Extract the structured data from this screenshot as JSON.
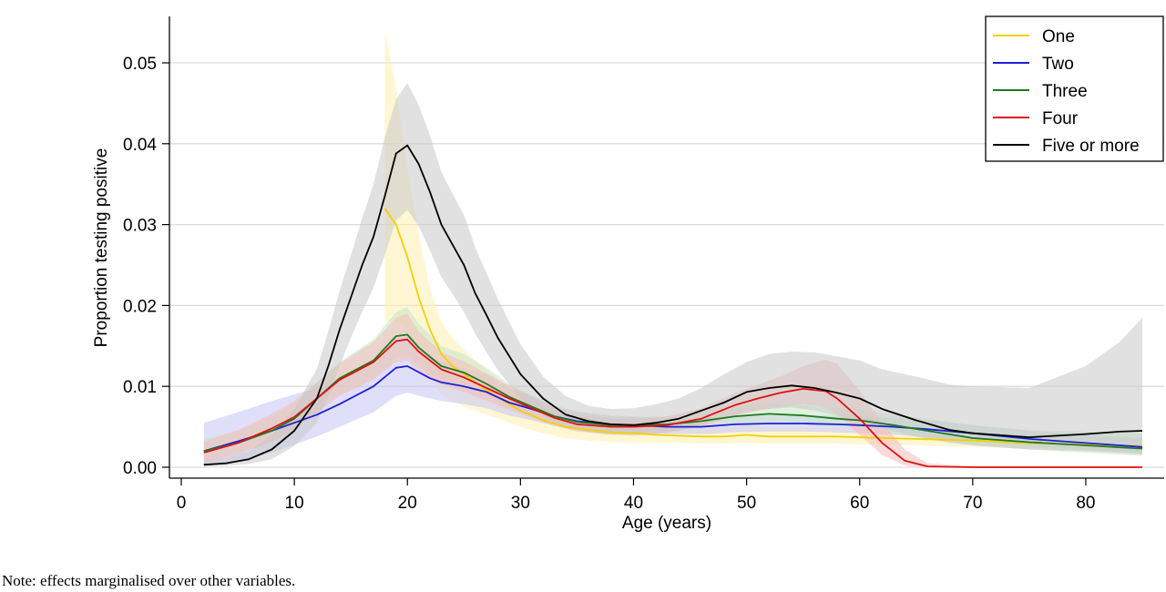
{
  "chart_data": {
    "type": "line",
    "xlabel": "Age (years)",
    "ylabel": "Proportion testing positive",
    "xlim": [
      0,
      87
    ],
    "ylim": [
      0,
      0.056
    ],
    "xticks": [
      0,
      10,
      20,
      30,
      40,
      50,
      60,
      70,
      80
    ],
    "yticks": [
      0.0,
      0.01,
      0.02,
      0.03,
      0.04,
      0.05
    ],
    "ytick_labels": [
      "0.00",
      "0.01",
      "0.02",
      "0.03",
      "0.04",
      "0.05"
    ],
    "grid": "horizontal",
    "legend_position": "top-right",
    "series": [
      {
        "name": "One",
        "color": "#f5d000",
        "band_color": "#fff0b0",
        "x": [
          18,
          19,
          20,
          21,
          22,
          23,
          24,
          25,
          27,
          29,
          30,
          32,
          34,
          36,
          38,
          40,
          42,
          44,
          46,
          48,
          50,
          52,
          55,
          58,
          60,
          62,
          65,
          70,
          75,
          80,
          85
        ],
        "y": [
          0.032,
          0.03,
          0.026,
          0.021,
          0.017,
          0.014,
          0.0125,
          0.0115,
          0.0095,
          0.0078,
          0.007,
          0.0058,
          0.005,
          0.0046,
          0.0043,
          0.0042,
          0.004,
          0.0039,
          0.0038,
          0.0038,
          0.004,
          0.0038,
          0.0038,
          0.0038,
          0.0037,
          0.0036,
          0.0035,
          0.0033,
          0.003,
          0.0028,
          0.0026
        ],
        "lower": [
          0.018,
          0.018,
          0.017,
          0.014,
          0.011,
          0.009,
          0.0082,
          0.0075,
          0.0065,
          0.0055,
          0.005,
          0.0042,
          0.0036,
          0.0033,
          0.0031,
          0.003,
          0.003,
          0.003,
          0.0029,
          0.0029,
          0.003,
          0.0029,
          0.0029,
          0.0029,
          0.0028,
          0.0028,
          0.0027,
          0.0025,
          0.0023,
          0.0021,
          0.0018
        ],
        "upper": [
          0.054,
          0.047,
          0.037,
          0.029,
          0.022,
          0.018,
          0.016,
          0.0145,
          0.012,
          0.0098,
          0.0088,
          0.0073,
          0.0063,
          0.0058,
          0.0055,
          0.0054,
          0.0051,
          0.005,
          0.0049,
          0.0048,
          0.0052,
          0.0049,
          0.0049,
          0.0049,
          0.0047,
          0.0046,
          0.0045,
          0.0043,
          0.004,
          0.0037,
          0.0036
        ]
      },
      {
        "name": "Two",
        "color": "#1f1fd6",
        "band_color": "#c4c4f5",
        "x": [
          2,
          5,
          8,
          10,
          12,
          14,
          17,
          19,
          20,
          22,
          23,
          25,
          27,
          29,
          31,
          33,
          35,
          38,
          40,
          43,
          46,
          49,
          52,
          55,
          58,
          60,
          63,
          66,
          70,
          75,
          80,
          85
        ],
        "y": [
          0.002,
          0.0032,
          0.0045,
          0.0055,
          0.0065,
          0.0078,
          0.01,
          0.0123,
          0.0125,
          0.011,
          0.0105,
          0.01,
          0.0093,
          0.008,
          0.0072,
          0.0063,
          0.0057,
          0.0053,
          0.0052,
          0.005,
          0.005,
          0.0053,
          0.0054,
          0.0054,
          0.0053,
          0.0052,
          0.005,
          0.0047,
          0.0042,
          0.0035,
          0.003,
          0.0025
        ],
        "lower": [
          0.0002,
          0.0008,
          0.0018,
          0.0028,
          0.0038,
          0.005,
          0.0068,
          0.0088,
          0.0092,
          0.0085,
          0.0082,
          0.0078,
          0.0073,
          0.0064,
          0.0058,
          0.0051,
          0.0046,
          0.0043,
          0.0042,
          0.0041,
          0.0041,
          0.0043,
          0.0044,
          0.0044,
          0.0043,
          0.0042,
          0.004,
          0.0037,
          0.0033,
          0.0027,
          0.0022,
          0.0016
        ],
        "upper": [
          0.0055,
          0.0068,
          0.0082,
          0.009,
          0.0098,
          0.0108,
          0.013,
          0.016,
          0.0162,
          0.0138,
          0.013,
          0.0122,
          0.0114,
          0.0098,
          0.0088,
          0.0076,
          0.0069,
          0.0064,
          0.0063,
          0.006,
          0.006,
          0.0064,
          0.0065,
          0.0065,
          0.0064,
          0.0063,
          0.0061,
          0.0058,
          0.0052,
          0.0045,
          0.004,
          0.0036
        ]
      },
      {
        "name": "Three",
        "color": "#1e7a1e",
        "band_color": "#c6e5c6",
        "x": [
          2,
          5,
          8,
          10,
          12,
          14,
          17,
          19,
          20,
          21,
          23,
          25,
          27,
          29,
          31,
          33,
          35,
          38,
          40,
          43,
          46,
          49,
          52,
          55,
          58,
          60,
          63,
          66,
          70,
          75,
          80,
          85
        ],
        "y": [
          0.002,
          0.003,
          0.0045,
          0.006,
          0.0085,
          0.011,
          0.0132,
          0.0162,
          0.0164,
          0.0148,
          0.0125,
          0.0117,
          0.0103,
          0.0087,
          0.0075,
          0.0063,
          0.0056,
          0.0052,
          0.0052,
          0.0053,
          0.0057,
          0.0063,
          0.0066,
          0.0064,
          0.006,
          0.0058,
          0.0052,
          0.0045,
          0.0036,
          0.0031,
          0.0027,
          0.0023
        ],
        "lower": [
          0.0008,
          0.0017,
          0.003,
          0.0045,
          0.0068,
          0.009,
          0.011,
          0.0135,
          0.0138,
          0.0125,
          0.0106,
          0.0099,
          0.0087,
          0.0073,
          0.0063,
          0.0053,
          0.0047,
          0.0044,
          0.0044,
          0.0045,
          0.0048,
          0.0053,
          0.0055,
          0.0053,
          0.0049,
          0.0047,
          0.0042,
          0.0035,
          0.0027,
          0.0022,
          0.0018,
          0.0014
        ],
        "upper": [
          0.0035,
          0.0045,
          0.0062,
          0.008,
          0.0105,
          0.013,
          0.0158,
          0.0192,
          0.0198,
          0.0178,
          0.015,
          0.014,
          0.0123,
          0.0103,
          0.0089,
          0.0075,
          0.0067,
          0.0062,
          0.0062,
          0.0063,
          0.0068,
          0.0075,
          0.0079,
          0.0077,
          0.0073,
          0.0071,
          0.0066,
          0.006,
          0.0052,
          0.0046,
          0.0044,
          0.0042
        ]
      },
      {
        "name": "Four",
        "color": "#e01010",
        "band_color": "#f4bcbc",
        "x": [
          2,
          5,
          8,
          10,
          12,
          14,
          17,
          19,
          20,
          21,
          23,
          25,
          27,
          29,
          31,
          33,
          35,
          38,
          40,
          43,
          46,
          49,
          51,
          53,
          55,
          57,
          58,
          60,
          62,
          64,
          66,
          70,
          75,
          80,
          85
        ],
        "y": [
          0.0018,
          0.003,
          0.0048,
          0.0062,
          0.0085,
          0.0108,
          0.013,
          0.0156,
          0.0158,
          0.0143,
          0.0121,
          0.0111,
          0.0098,
          0.0085,
          0.0073,
          0.0061,
          0.0053,
          0.005,
          0.005,
          0.0052,
          0.006,
          0.0077,
          0.0085,
          0.0092,
          0.0097,
          0.0094,
          0.0085,
          0.006,
          0.003,
          0.0008,
          0.0001,
          0.0,
          0.0,
          0.0,
          0.0
        ],
        "lower": [
          0.0006,
          0.0016,
          0.0032,
          0.0046,
          0.0068,
          0.0088,
          0.0108,
          0.013,
          0.0132,
          0.012,
          0.0102,
          0.0093,
          0.0082,
          0.0071,
          0.0061,
          0.0051,
          0.0044,
          0.0041,
          0.0041,
          0.0043,
          0.005,
          0.0064,
          0.007,
          0.0075,
          0.0078,
          0.0074,
          0.0065,
          0.004,
          0.0015,
          0.0002,
          0.0,
          0.0,
          0.0,
          0.0,
          0.0
        ],
        "upper": [
          0.0032,
          0.0046,
          0.0066,
          0.0082,
          0.0105,
          0.0128,
          0.0155,
          0.0185,
          0.019,
          0.0168,
          0.0142,
          0.0131,
          0.0116,
          0.0101,
          0.0087,
          0.0073,
          0.0064,
          0.006,
          0.006,
          0.0063,
          0.0073,
          0.0092,
          0.0102,
          0.0112,
          0.0125,
          0.0133,
          0.0128,
          0.0095,
          0.0055,
          0.0022,
          0.0005,
          0.0001,
          0.0,
          0.0,
          0.0
        ]
      },
      {
        "name": "Five or more",
        "color": "#000000",
        "band_color": "#c8c8c8",
        "x": [
          2,
          4,
          6,
          8,
          10,
          12,
          13,
          14,
          15,
          16,
          17,
          18,
          19,
          20,
          21,
          22,
          23,
          24,
          25,
          26,
          27,
          28,
          30,
          32,
          34,
          36,
          38,
          40,
          42,
          44,
          46,
          48,
          50,
          52,
          54,
          56,
          58,
          60,
          62,
          65,
          68,
          70,
          75,
          80,
          83,
          85
        ],
        "y": [
          0.0003,
          0.0005,
          0.001,
          0.0022,
          0.0045,
          0.0085,
          0.0125,
          0.017,
          0.021,
          0.025,
          0.0285,
          0.0335,
          0.0388,
          0.0398,
          0.0375,
          0.034,
          0.03,
          0.0275,
          0.025,
          0.0215,
          0.0188,
          0.016,
          0.0115,
          0.0085,
          0.0065,
          0.0057,
          0.0053,
          0.0052,
          0.0055,
          0.006,
          0.007,
          0.008,
          0.0093,
          0.0098,
          0.0101,
          0.0098,
          0.0092,
          0.0085,
          0.0072,
          0.0058,
          0.0046,
          0.0042,
          0.0037,
          0.0041,
          0.0044,
          0.0045
        ],
        "lower": [
          0.0001,
          0.0002,
          0.0004,
          0.001,
          0.0026,
          0.0055,
          0.0088,
          0.0125,
          0.016,
          0.0192,
          0.0222,
          0.0262,
          0.0305,
          0.0318,
          0.0298,
          0.0268,
          0.0235,
          0.0214,
          0.0192,
          0.0165,
          0.0142,
          0.012,
          0.0085,
          0.0063,
          0.0049,
          0.0043,
          0.004,
          0.0039,
          0.0041,
          0.0045,
          0.0053,
          0.006,
          0.0069,
          0.0072,
          0.0074,
          0.007,
          0.0064,
          0.0058,
          0.0048,
          0.0038,
          0.003,
          0.0027,
          0.0022,
          0.002,
          0.0018,
          0.0016
        ],
        "upper": [
          0.0008,
          0.0012,
          0.002,
          0.004,
          0.0072,
          0.0122,
          0.0168,
          0.0218,
          0.0262,
          0.0308,
          0.035,
          0.0408,
          0.0455,
          0.0475,
          0.0448,
          0.041,
          0.0365,
          0.0338,
          0.0312,
          0.0272,
          0.024,
          0.0208,
          0.0152,
          0.0112,
          0.0088,
          0.0076,
          0.0072,
          0.0073,
          0.0078,
          0.0085,
          0.0098,
          0.0115,
          0.013,
          0.014,
          0.0143,
          0.0142,
          0.0137,
          0.0132,
          0.0121,
          0.0112,
          0.0102,
          0.01,
          0.0098,
          0.0125,
          0.0155,
          0.0185
        ]
      }
    ]
  },
  "note": "Note: effects marginalised over other variables."
}
